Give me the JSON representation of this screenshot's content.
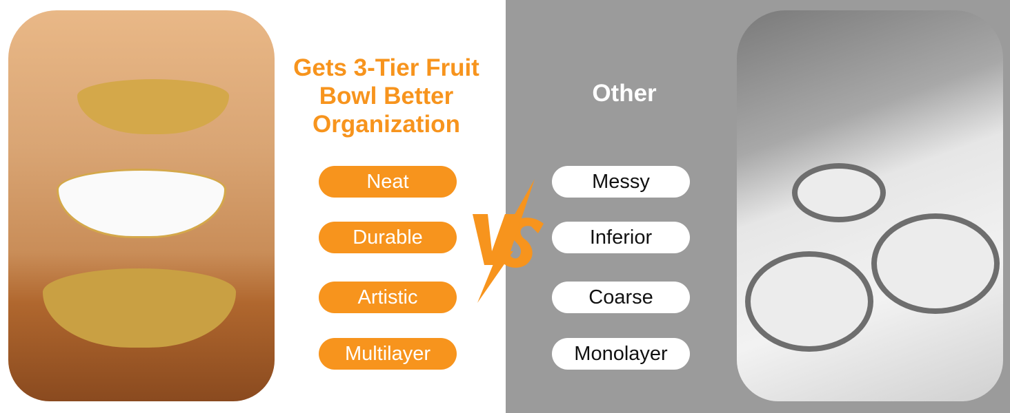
{
  "title": "Gets 3-Tier Fruit Bowl Better Organization",
  "other_title": "Other",
  "versus_label": "VS",
  "good_features": [
    "Neat",
    "Durable",
    "Artistic",
    "Multilayer"
  ],
  "bad_features": [
    "Messy",
    "Inferior",
    "Coarse",
    "Monolayer"
  ],
  "colors": {
    "accent": "#f7941d",
    "panel_gray": "#9b9b9b",
    "pill_white": "#ffffff"
  },
  "images": {
    "left": "3-tier gold fruit bowl with fruit and cookies",
    "right": "grayscale round woven single-layer trays"
  }
}
